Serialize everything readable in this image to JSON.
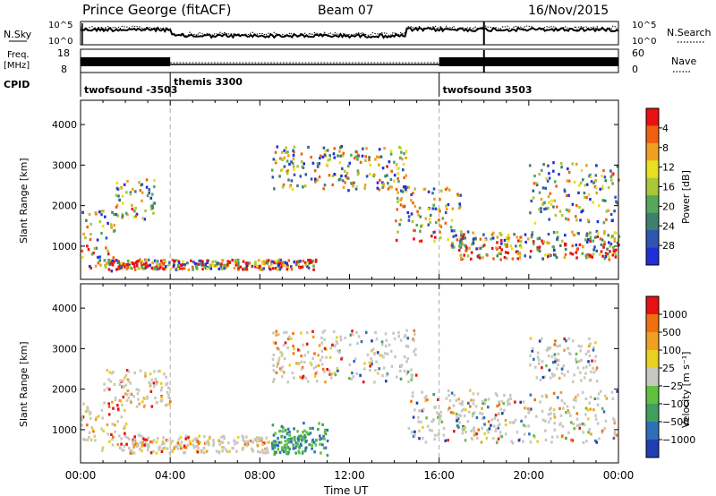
{
  "header": {
    "station": "Prince George (fitACF)",
    "beam": "Beam 07",
    "date": "16/Nov/2015"
  },
  "noise_panel": {
    "left_label": "N.Sky",
    "left_ticks": [
      "10^5",
      "10^0"
    ],
    "right_label": "N.Search",
    "right_ticks": [
      "10^5",
      "10^0"
    ]
  },
  "freq_panel": {
    "left_label_1": "Freq.",
    "left_label_2": "[MHz]",
    "left_ticks": [
      "18",
      "8"
    ],
    "right_label": "Nave",
    "right_ticks": [
      "60",
      "0"
    ]
  },
  "cpid": {
    "label": "CPID",
    "segments": [
      {
        "name": "twofsound -3503",
        "start_hour": 0
      },
      {
        "name": "themis 3300",
        "start_hour": 4
      },
      {
        "name": "twofsound 3503",
        "start_hour": 16
      }
    ],
    "boundaries_hours": [
      4,
      16
    ]
  },
  "colors": {
    "power_scale": [
      "#1f2fd8",
      "#2f55b0",
      "#3f7f6e",
      "#55a85a",
      "#a8c838",
      "#e8e020",
      "#f0a020",
      "#f06010",
      "#e81010"
    ],
    "velocity_scale": [
      "#1f3fb0",
      "#2f6fb8",
      "#3f9f5f",
      "#60c040",
      "#c8c8c0",
      "#e8d020",
      "#f0a020",
      "#f07010",
      "#e81010"
    ]
  },
  "chart_data": [
    {
      "type": "heatmap",
      "title": "",
      "ylabel": "Slant Range [km]",
      "xlabel": "",
      "xlim_hours": [
        0,
        24
      ],
      "ylim": [
        180,
        4600
      ],
      "y_ticks": [
        "1000",
        "2000",
        "3000",
        "4000"
      ],
      "colorbar": {
        "label": "Power [dB]",
        "ticks": [
          "4",
          "8",
          "12",
          "16",
          "20",
          "24",
          "28"
        ],
        "range": [
          0,
          30
        ]
      },
      "echo_regions_range_km": [
        {
          "t_start": 0.0,
          "t_end": 1.5,
          "r_start": 400,
          "r_end": 2000
        },
        {
          "t_start": 1.5,
          "t_end": 3.3,
          "r_start": 1700,
          "r_end": 2700
        },
        {
          "t_start": 1.0,
          "t_end": 10.5,
          "r_start": 450,
          "r_end": 700
        },
        {
          "t_start": 8.5,
          "t_end": 14.5,
          "r_start": 2400,
          "r_end": 3500
        },
        {
          "t_start": 14.0,
          "t_end": 17.0,
          "r_start": 1000,
          "r_end": 2500
        },
        {
          "t_start": 16.5,
          "t_end": 24.0,
          "r_start": 700,
          "r_end": 1400
        },
        {
          "t_start": 20.0,
          "t_end": 24.0,
          "r_start": 1600,
          "r_end": 3100
        }
      ]
    },
    {
      "type": "heatmap",
      "title": "",
      "ylabel": "Slant Range [km]",
      "xlabel": "Time UT",
      "x_ticks": [
        "00:00",
        "04:00",
        "08:00",
        "12:00",
        "16:00",
        "20:00",
        "00:00"
      ],
      "xlim_hours": [
        0,
        24
      ],
      "ylim": [
        180,
        4600
      ],
      "y_ticks": [
        "1000",
        "2000",
        "3000",
        "4000"
      ],
      "colorbar": {
        "label": "Velocity [m s⁻¹]",
        "ticks": [
          "1000",
          "500",
          "100",
          "25",
          "−25",
          "−100",
          "−500",
          "−1000"
        ],
        "range": [
          -1000,
          1000
        ]
      },
      "echo_regions_range_km": [
        {
          "t_start": 0.0,
          "t_end": 2.0,
          "r_start": 500,
          "r_end": 1700
        },
        {
          "t_start": 2.0,
          "t_end": 10.0,
          "r_start": 450,
          "r_end": 900
        },
        {
          "t_start": 1.0,
          "t_end": 4.0,
          "r_start": 1600,
          "r_end": 2500
        },
        {
          "t_start": 8.5,
          "t_end": 15.0,
          "r_start": 2200,
          "r_end": 3500
        },
        {
          "t_start": 14.5,
          "t_end": 24.0,
          "r_start": 700,
          "r_end": 2000
        },
        {
          "t_start": 8.5,
          "t_end": 11.0,
          "r_start": 400,
          "r_end": 1200
        },
        {
          "t_start": 20.0,
          "t_end": 23.0,
          "r_start": 2200,
          "r_end": 3300
        }
      ]
    }
  ]
}
